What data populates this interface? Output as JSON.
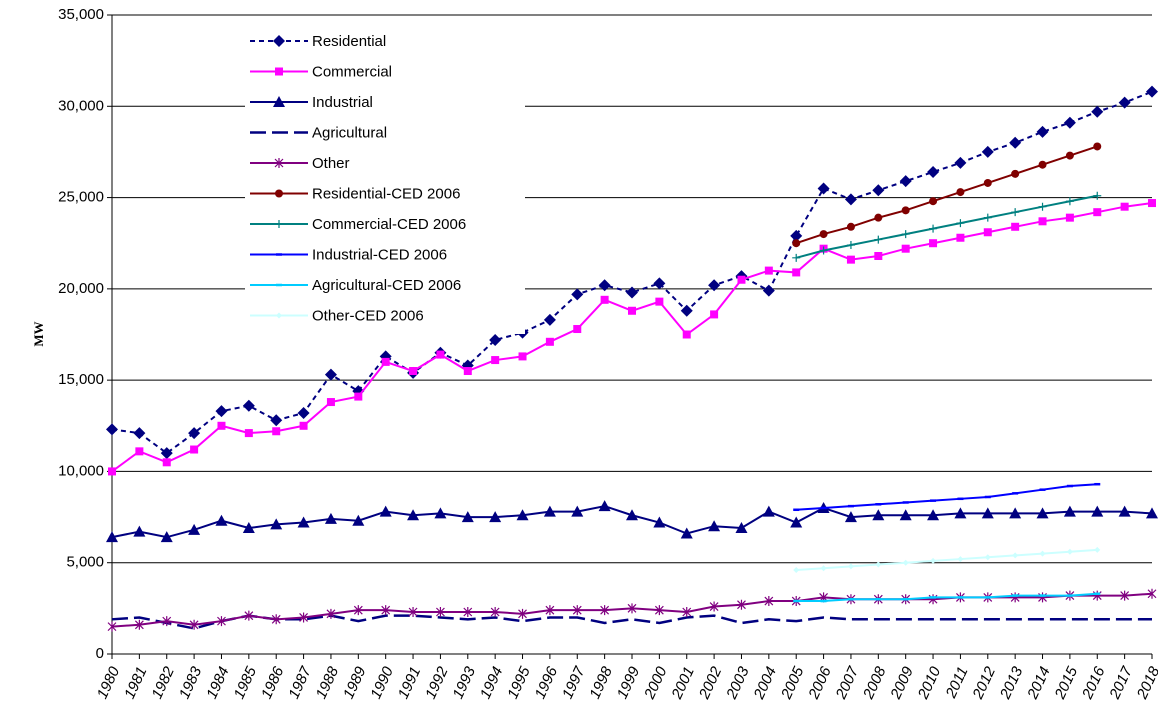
{
  "chart_data": {
    "type": "line",
    "y_label": "MW",
    "categories": [
      "1980",
      "1981",
      "1982",
      "1983",
      "1984",
      "1985",
      "1986",
      "1987",
      "1988",
      "1989",
      "1990",
      "1991",
      "1992",
      "1993",
      "1994",
      "1995",
      "1996",
      "1997",
      "1998",
      "1999",
      "2000",
      "2001",
      "2002",
      "2003",
      "2004",
      "2005",
      "2006",
      "2007",
      "2008",
      "2009",
      "2010",
      "2011",
      "2012",
      "2013",
      "2014",
      "2015",
      "2016",
      "2017",
      "2018"
    ],
    "ylim": [
      0,
      35000
    ],
    "yticks": [
      0,
      {
        "value": 5000,
        "label": "5,000"
      },
      {
        "value": 10000,
        "label": "10,000"
      },
      {
        "value": 15000,
        "label": "15,000"
      },
      {
        "value": 20000,
        "label": "20,000"
      },
      {
        "value": 25000,
        "label": "25,000"
      },
      {
        "value": 30000,
        "label": "30,000"
      },
      {
        "value": 35000,
        "label": "35,000"
      }
    ],
    "grid": true,
    "legend": "upper left",
    "series": [
      {
        "name": "Residential",
        "color": "#000080",
        "marker": "diamond",
        "dash": "dotted",
        "values": [
          12300,
          12100,
          11000,
          12100,
          13300,
          13600,
          12800,
          13200,
          15300,
          14400,
          16300,
          15400,
          16500,
          15800,
          17200,
          17600,
          18300,
          19700,
          20200,
          19800,
          20300,
          18800,
          20200,
          20700,
          19900,
          22900,
          25500,
          24900,
          25400,
          25900,
          26400,
          26900,
          27500,
          28000,
          28600,
          29100,
          29700,
          30200,
          30800
        ]
      },
      {
        "name": "Commercial",
        "color": "#ff00ff",
        "marker": "square",
        "dash": "solid",
        "values": [
          10000,
          11100,
          10500,
          11200,
          12500,
          12100,
          12200,
          12500,
          13800,
          14100,
          16000,
          15500,
          16400,
          15500,
          16100,
          16300,
          17100,
          17800,
          19400,
          18800,
          19300,
          17500,
          18600,
          20500,
          21000,
          20900,
          22200,
          21600,
          21800,
          22200,
          22500,
          22800,
          23100,
          23400,
          23700,
          23900,
          24200,
          24500,
          24700
        ]
      },
      {
        "name": "Industrial",
        "color": "#000080",
        "marker": "triangle",
        "dash": "solid",
        "values": [
          6400,
          6700,
          6400,
          6800,
          7300,
          6900,
          7100,
          7200,
          7400,
          7300,
          7800,
          7600,
          7700,
          7500,
          7500,
          7600,
          7800,
          7800,
          8100,
          7600,
          7200,
          6600,
          7000,
          6900,
          7800,
          7200,
          8000,
          7500,
          7600,
          7600,
          7600,
          7700,
          7700,
          7700,
          7700,
          7800,
          7800,
          7800,
          7700
        ]
      },
      {
        "name": "Agricultural",
        "color": "#000080",
        "marker": "none",
        "dash": "long",
        "values": [
          1900,
          2000,
          1700,
          1400,
          1800,
          2100,
          1900,
          1900,
          2100,
          1800,
          2100,
          2100,
          2000,
          1900,
          2000,
          1800,
          2000,
          2000,
          1700,
          1900,
          1700,
          2000,
          2100,
          1700,
          1900,
          1800,
          2000,
          1900,
          1900,
          1900,
          1900,
          1900,
          1900,
          1900,
          1900,
          1900,
          1900,
          1900,
          1900
        ]
      },
      {
        "name": "Other",
        "color": "#800080",
        "marker": "asterisk",
        "dash": "solid",
        "values": [
          1500,
          1600,
          1800,
          1600,
          1800,
          2100,
          1900,
          2000,
          2200,
          2400,
          2400,
          2300,
          2300,
          2300,
          2300,
          2200,
          2400,
          2400,
          2400,
          2500,
          2400,
          2300,
          2600,
          2700,
          2900,
          2900,
          3100,
          3000,
          3000,
          3000,
          3000,
          3100,
          3100,
          3100,
          3100,
          3200,
          3200,
          3200,
          3300
        ]
      },
      {
        "name": "Residential-CED 2006",
        "color": "#800000",
        "marker": "circle",
        "dash": "solid",
        "values": [
          null,
          null,
          null,
          null,
          null,
          null,
          null,
          null,
          null,
          null,
          null,
          null,
          null,
          null,
          null,
          null,
          null,
          null,
          null,
          null,
          null,
          null,
          null,
          null,
          null,
          22500,
          23000,
          23400,
          23900,
          24300,
          24800,
          25300,
          25800,
          26300,
          26800,
          27300,
          27800,
          null,
          null
        ]
      },
      {
        "name": "Commercial-CED 2006",
        "color": "#008080",
        "marker": "plus",
        "dash": "solid",
        "values": [
          null,
          null,
          null,
          null,
          null,
          null,
          null,
          null,
          null,
          null,
          null,
          null,
          null,
          null,
          null,
          null,
          null,
          null,
          null,
          null,
          null,
          null,
          null,
          null,
          null,
          21700,
          22100,
          22400,
          22700,
          23000,
          23300,
          23600,
          23900,
          24200,
          24500,
          24800,
          25100,
          null,
          null
        ]
      },
      {
        "name": "Industrial-CED 2006",
        "color": "#0000ff",
        "marker": "dash",
        "dash": "solid",
        "values": [
          null,
          null,
          null,
          null,
          null,
          null,
          null,
          null,
          null,
          null,
          null,
          null,
          null,
          null,
          null,
          null,
          null,
          null,
          null,
          null,
          null,
          null,
          null,
          null,
          null,
          7900,
          8000,
          8100,
          8200,
          8300,
          8400,
          8500,
          8600,
          8800,
          9000,
          9200,
          9300,
          null,
          null
        ]
      },
      {
        "name": "Agricultural-CED 2006",
        "color": "#00ccff",
        "marker": "dash",
        "dash": "solid",
        "values": [
          null,
          null,
          null,
          null,
          null,
          null,
          null,
          null,
          null,
          null,
          null,
          null,
          null,
          null,
          null,
          null,
          null,
          null,
          null,
          null,
          null,
          null,
          null,
          null,
          null,
          2900,
          2900,
          3000,
          3000,
          3000,
          3100,
          3100,
          3100,
          3200,
          3200,
          3200,
          3300,
          null,
          null
        ]
      },
      {
        "name": "Other-CED 2006",
        "color": "#ccffff",
        "marker": "smalldiamond",
        "dash": "solid",
        "values": [
          null,
          null,
          null,
          null,
          null,
          null,
          null,
          null,
          null,
          null,
          null,
          null,
          null,
          null,
          null,
          null,
          null,
          null,
          null,
          null,
          null,
          null,
          null,
          null,
          null,
          4600,
          4700,
          4800,
          4900,
          5000,
          5100,
          5200,
          5300,
          5400,
          5500,
          5600,
          5700,
          null,
          null
        ]
      }
    ]
  }
}
